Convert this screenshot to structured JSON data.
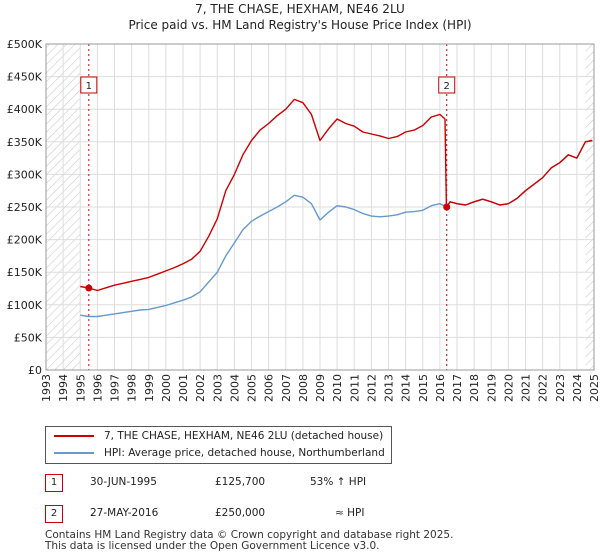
{
  "title_line1": "7, THE CHASE, HEXHAM, NE46 2LU",
  "title_line2": "Price paid vs. HM Land Registry's House Price Index (HPI)",
  "colors": {
    "property": "#cc0000",
    "hpi": "#6699cc",
    "grid": "#dddddd",
    "marker_line": "#cc0000"
  },
  "legend": {
    "property_label": "7, THE CHASE, HEXHAM, NE46 2LU (detached house)",
    "hpi_label": "HPI: Average price, detached house, Northumberland"
  },
  "transactions": [
    {
      "num": "1",
      "date": "30-JUN-1995",
      "price": "£125,700",
      "hpi_note": "53% ↑ HPI"
    },
    {
      "num": "2",
      "date": "27-MAY-2016",
      "price": "£250,000",
      "hpi_note": "≈ HPI"
    }
  ],
  "footer": {
    "line1": "Contains HM Land Registry data © Crown copyright and database right 2025.",
    "line2": "This data is licensed under the Open Government Licence v3.0."
  },
  "chart_data": {
    "type": "line",
    "xlim": [
      1993,
      2025
    ],
    "ylim": [
      0,
      500000
    ],
    "y_ticks": [
      0,
      50000,
      100000,
      150000,
      200000,
      250000,
      300000,
      350000,
      400000,
      450000,
      500000
    ],
    "y_tick_labels": [
      "£0",
      "£50K",
      "£100K",
      "£150K",
      "£200K",
      "£250K",
      "£300K",
      "£350K",
      "£400K",
      "£450K",
      "£500K"
    ],
    "x_ticks": [
      1993,
      1994,
      1995,
      1996,
      1997,
      1998,
      1999,
      2000,
      2001,
      2002,
      2003,
      2004,
      2005,
      2006,
      2007,
      2008,
      2009,
      2010,
      2011,
      2012,
      2013,
      2014,
      2015,
      2016,
      2017,
      2018,
      2019,
      2020,
      2021,
      2022,
      2023,
      2024,
      2025
    ],
    "hatch_before": 1995.0,
    "hatch_after": 2024.5,
    "markers": [
      {
        "label": "1",
        "x": 1995.5,
        "y": 125700
      },
      {
        "label": "2",
        "x": 2016.4,
        "y": 250000
      }
    ],
    "series": [
      {
        "name": "7, THE CHASE, HEXHAM, NE46 2LU (detached house)",
        "points": [
          [
            1995.0,
            128000
          ],
          [
            1995.5,
            125700
          ],
          [
            1996.0,
            122000
          ],
          [
            1996.5,
            126000
          ],
          [
            1997.0,
            130000
          ],
          [
            1997.5,
            133000
          ],
          [
            1998.0,
            136000
          ],
          [
            1998.5,
            139000
          ],
          [
            1999.0,
            142000
          ],
          [
            1999.5,
            147000
          ],
          [
            2000.0,
            152000
          ],
          [
            2000.5,
            157000
          ],
          [
            2001.0,
            163000
          ],
          [
            2001.5,
            170000
          ],
          [
            2002.0,
            182000
          ],
          [
            2002.5,
            205000
          ],
          [
            2003.0,
            232000
          ],
          [
            2003.5,
            275000
          ],
          [
            2004.0,
            300000
          ],
          [
            2004.5,
            330000
          ],
          [
            2005.0,
            352000
          ],
          [
            2005.5,
            368000
          ],
          [
            2006.0,
            378000
          ],
          [
            2006.5,
            390000
          ],
          [
            2007.0,
            400000
          ],
          [
            2007.5,
            415000
          ],
          [
            2008.0,
            410000
          ],
          [
            2008.5,
            392000
          ],
          [
            2009.0,
            352000
          ],
          [
            2009.5,
            370000
          ],
          [
            2010.0,
            385000
          ],
          [
            2010.5,
            378000
          ],
          [
            2011.0,
            374000
          ],
          [
            2011.5,
            365000
          ],
          [
            2012.0,
            362000
          ],
          [
            2012.5,
            359000
          ],
          [
            2013.0,
            355000
          ],
          [
            2013.5,
            358000
          ],
          [
            2014.0,
            365000
          ],
          [
            2014.5,
            368000
          ],
          [
            2015.0,
            375000
          ],
          [
            2015.5,
            388000
          ],
          [
            2016.0,
            392000
          ],
          [
            2016.3,
            385000
          ],
          [
            2016.38,
            250000
          ],
          [
            2016.4,
            250000
          ],
          [
            2016.6,
            258000
          ],
          [
            2017.0,
            255000
          ],
          [
            2017.5,
            253000
          ],
          [
            2018.0,
            258000
          ],
          [
            2018.5,
            262000
          ],
          [
            2019.0,
            258000
          ],
          [
            2019.5,
            253000
          ],
          [
            2020.0,
            255000
          ],
          [
            2020.5,
            263000
          ],
          [
            2021.0,
            275000
          ],
          [
            2021.5,
            285000
          ],
          [
            2022.0,
            295000
          ],
          [
            2022.5,
            310000
          ],
          [
            2023.0,
            318000
          ],
          [
            2023.5,
            330000
          ],
          [
            2024.0,
            325000
          ],
          [
            2024.5,
            350000
          ],
          [
            2024.9,
            352000
          ]
        ]
      },
      {
        "name": "HPI: Average price, detached house, Northumberland",
        "points": [
          [
            1995.0,
            84000
          ],
          [
            1995.5,
            82000
          ],
          [
            1996.0,
            82000
          ],
          [
            1996.5,
            84000
          ],
          [
            1997.0,
            86000
          ],
          [
            1997.5,
            88000
          ],
          [
            1998.0,
            90000
          ],
          [
            1998.5,
            92000
          ],
          [
            1999.0,
            93000
          ],
          [
            1999.5,
            96000
          ],
          [
            2000.0,
            99000
          ],
          [
            2000.5,
            103000
          ],
          [
            2001.0,
            107000
          ],
          [
            2001.5,
            112000
          ],
          [
            2002.0,
            120000
          ],
          [
            2002.5,
            135000
          ],
          [
            2003.0,
            150000
          ],
          [
            2003.5,
            175000
          ],
          [
            2004.0,
            195000
          ],
          [
            2004.5,
            215000
          ],
          [
            2005.0,
            228000
          ],
          [
            2005.5,
            236000
          ],
          [
            2006.0,
            243000
          ],
          [
            2006.5,
            250000
          ],
          [
            2007.0,
            258000
          ],
          [
            2007.5,
            268000
          ],
          [
            2008.0,
            265000
          ],
          [
            2008.5,
            255000
          ],
          [
            2009.0,
            230000
          ],
          [
            2009.5,
            242000
          ],
          [
            2010.0,
            252000
          ],
          [
            2010.5,
            250000
          ],
          [
            2011.0,
            246000
          ],
          [
            2011.5,
            240000
          ],
          [
            2012.0,
            236000
          ],
          [
            2012.5,
            235000
          ],
          [
            2013.0,
            236000
          ],
          [
            2013.5,
            238000
          ],
          [
            2014.0,
            242000
          ],
          [
            2014.5,
            243000
          ],
          [
            2015.0,
            245000
          ],
          [
            2015.5,
            252000
          ],
          [
            2016.0,
            255000
          ],
          [
            2016.4,
            250000
          ],
          [
            2016.6,
            258000
          ],
          [
            2017.0,
            255000
          ],
          [
            2017.5,
            253000
          ],
          [
            2018.0,
            258000
          ],
          [
            2018.5,
            262000
          ],
          [
            2019.0,
            258000
          ],
          [
            2019.5,
            253000
          ],
          [
            2020.0,
            255000
          ],
          [
            2020.5,
            263000
          ],
          [
            2021.0,
            275000
          ],
          [
            2021.5,
            285000
          ],
          [
            2022.0,
            295000
          ],
          [
            2022.5,
            310000
          ],
          [
            2023.0,
            318000
          ],
          [
            2023.5,
            330000
          ],
          [
            2024.0,
            325000
          ],
          [
            2024.5,
            350000
          ],
          [
            2024.9,
            352000
          ]
        ]
      }
    ]
  }
}
